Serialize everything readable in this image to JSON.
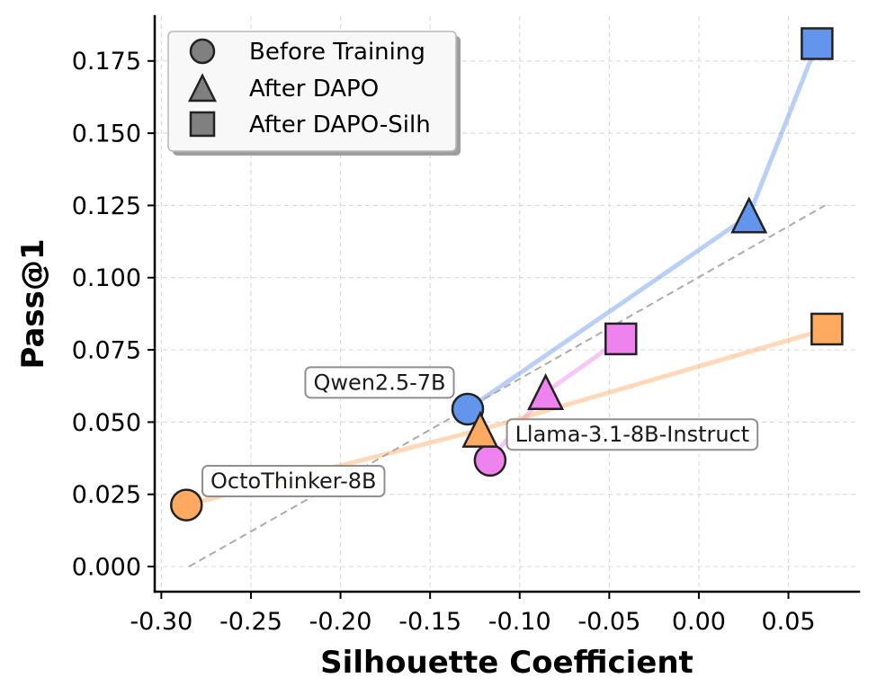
{
  "chart_data": {
    "type": "scatter",
    "xlabel": "Silhouette Coefficient",
    "ylabel": "Pass@1",
    "xlim": [
      -0.3037,
      0.0894
    ],
    "ylim": [
      -0.0087,
      0.1905
    ],
    "xticks": [
      -0.3,
      -0.25,
      -0.2,
      -0.15,
      -0.1,
      -0.05,
      0.0,
      0.05
    ],
    "xtick_labels": [
      "-0.30",
      "-0.25",
      "-0.20",
      "-0.15",
      "-0.10",
      "-0.05",
      "0.00",
      "0.05"
    ],
    "yticks": [
      0.0,
      0.025,
      0.05,
      0.075,
      0.1,
      0.125,
      0.15,
      0.175
    ],
    "ytick_labels": [
      "0.000",
      "0.025",
      "0.050",
      "0.075",
      "0.100",
      "0.125",
      "0.150",
      "0.175"
    ],
    "grid": true,
    "legend": {
      "position": "top-left",
      "entries": [
        {
          "label": "Before Training",
          "marker": "circle",
          "color": "#808080"
        },
        {
          "label": "After DAPO",
          "marker": "triangle",
          "color": "#808080"
        },
        {
          "label": "After DAPO-Silh",
          "marker": "square",
          "color": "#808080"
        }
      ]
    },
    "series": [
      {
        "name": "Qwen2.5-7B",
        "color": "#6495ED",
        "x": [
          -0.129,
          0.028,
          0.066
        ],
        "y": [
          0.0545,
          0.1215,
          0.181
        ]
      },
      {
        "name": "Llama-3.1-8B-Instruct",
        "color": "#EE82EE",
        "x": [
          -0.1165,
          -0.0855,
          -0.0435
        ],
        "y": [
          0.0368,
          0.0603,
          0.0788
        ]
      },
      {
        "name": "OctoThinker-8B",
        "color": "#FFAA60",
        "x": [
          -0.286,
          -0.122,
          0.0715
        ],
        "y": [
          0.0213,
          0.0473,
          0.0822
        ]
      }
    ],
    "reference_line": {
      "color": "#ABABAB",
      "x": [
        -0.2845,
        0.0705
      ],
      "y": [
        0.0,
        0.125
      ]
    }
  }
}
